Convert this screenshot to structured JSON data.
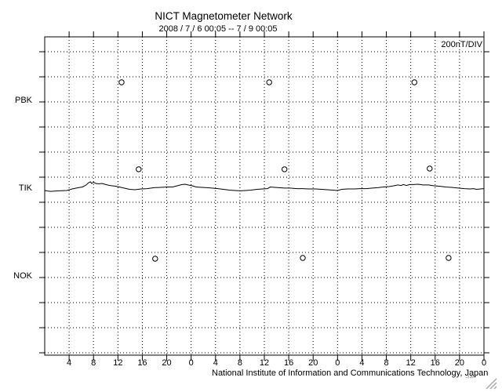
{
  "header": {
    "title": "NICT Magnetometer Network",
    "subtitle": "2008 / 7 / 6   00:05 --  7 / 9   00:05"
  },
  "chart_data": {
    "type": "line",
    "title": "NICT Magnetometer Network",
    "time_range_label": "2008 / 7 / 6   00:05 --  7 / 9   00:05",
    "scale_label": "200nT/DIV",
    "footer": "National Institute of Information and Communications Technology, Japan",
    "corner_mark": ",,| ,|u ▪",
    "x_axis": {
      "total_hours": 72,
      "tick_interval_hours": 4,
      "tick_labels": [
        "4",
        "8",
        "12",
        "16",
        "20",
        "0",
        "4",
        "8",
        "12",
        "16",
        "20",
        "0",
        "4",
        "8",
        "12",
        "16",
        "20",
        "0"
      ]
    },
    "y_axis": {
      "divisions": 13,
      "nT_per_division": 200,
      "grid": "dotted"
    },
    "stations": [
      {
        "name": "PBK",
        "baseline_div": 2,
        "markers": {
          "hours": [
            12.6,
            36.8,
            60.6
          ],
          "nT": [
            156,
            156,
            156
          ]
        }
      },
      {
        "name": "TIK",
        "baseline_div": 5.5,
        "markers": {
          "hours": [
            15.4,
            39.3,
            63.1
          ],
          "nT": [
            163,
            163,
            169
          ]
        },
        "line": {
          "hours": [
            0,
            0.5,
            1.0,
            2.3,
            3.6,
            4.5,
            5.5,
            6.2,
            6.8,
            7.2,
            7.5,
            7.7,
            8.0,
            8.4,
            8.9,
            9.4,
            10.0,
            10.7,
            11.6,
            12.2,
            13.0,
            13.9,
            14.8,
            15.8,
            16.8,
            17.9,
            19.0,
            20.1,
            21.0,
            21.7,
            22.5,
            23.0,
            23.5,
            24.2,
            24.8,
            25.7,
            26.6,
            27.4,
            28.4,
            29.3,
            30.3,
            31.2,
            32.1,
            32.9,
            33.8,
            34.8,
            35.7,
            36.5,
            37.0,
            37.7,
            38.4,
            39.3,
            40.2,
            41.3,
            42.3,
            43.3,
            44.4,
            45.4,
            46.3,
            47.2,
            48.0,
            48.7,
            49.6,
            50.7,
            51.7,
            52.7,
            53.7,
            54.6,
            55.5,
            56.4,
            57.2,
            57.9,
            58.4,
            58.8,
            59.3,
            59.8,
            60.4,
            61.2,
            62.0,
            62.9,
            63.8,
            64.7,
            65.7,
            66.7,
            67.8,
            68.8,
            69.7,
            70.3,
            70.8,
            71.4,
            72
          ],
          "nT": [
            -6,
            -10,
            -13,
            -9,
            -6,
            6,
            16,
            22,
            38,
            56,
            63,
            50,
            59,
            50,
            47,
            50,
            41,
            34,
            28,
            22,
            13,
            3,
            0,
            6,
            9,
            16,
            19,
            22,
            22,
            31,
            41,
            44,
            38,
            31,
            22,
            19,
            16,
            13,
            9,
            3,
            -3,
            -6,
            -9,
            -6,
            -3,
            3,
            6,
            9,
            22,
            19,
            16,
            13,
            13,
            9,
            9,
            6,
            6,
            3,
            0,
            -3,
            -6,
            3,
            6,
            6,
            9,
            9,
            13,
            16,
            22,
            25,
            31,
            38,
            34,
            41,
            34,
            41,
            41,
            44,
            38,
            38,
            31,
            28,
            22,
            19,
            13,
            9,
            6,
            9,
            3,
            6,
            9
          ]
        }
      },
      {
        "name": "NOK",
        "baseline_div": 9,
        "markers": {
          "hours": [
            18.1,
            42.3,
            66.2
          ],
          "nT": [
            150,
            156,
            156
          ]
        }
      }
    ],
    "colors": {
      "line": "#000000",
      "grid": "#000000",
      "background": "#ffffff",
      "grip": "#a8a8a8"
    }
  }
}
